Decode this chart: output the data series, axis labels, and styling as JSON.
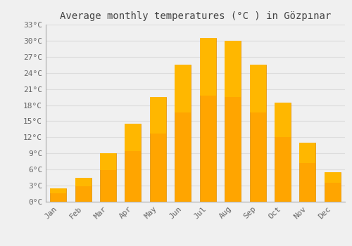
{
  "title": "Average monthly temperatures (°C ) in Gözpınar",
  "months": [
    "Jan",
    "Feb",
    "Mar",
    "Apr",
    "May",
    "Jun",
    "Jul",
    "Aug",
    "Sep",
    "Oct",
    "Nov",
    "Dec"
  ],
  "values": [
    2.5,
    4.5,
    9.0,
    14.5,
    19.5,
    25.5,
    30.5,
    30.0,
    25.5,
    18.5,
    11.0,
    5.5
  ],
  "bar_color_top": "#FFB700",
  "bar_color_bottom": "#FFA500",
  "bar_edge_color": "#E09000",
  "background_color": "#F0F0F0",
  "ylim": [
    0,
    33
  ],
  "yticks": [
    0,
    3,
    6,
    9,
    12,
    15,
    18,
    21,
    24,
    27,
    30,
    33
  ],
  "ytick_labels": [
    "0°C",
    "3°C",
    "6°C",
    "9°C",
    "12°C",
    "15°C",
    "18°C",
    "21°C",
    "24°C",
    "27°C",
    "30°C",
    "33°C"
  ],
  "title_fontsize": 10,
  "tick_fontsize": 8,
  "grid_color": "#DDDDDD",
  "text_color": "#666666"
}
